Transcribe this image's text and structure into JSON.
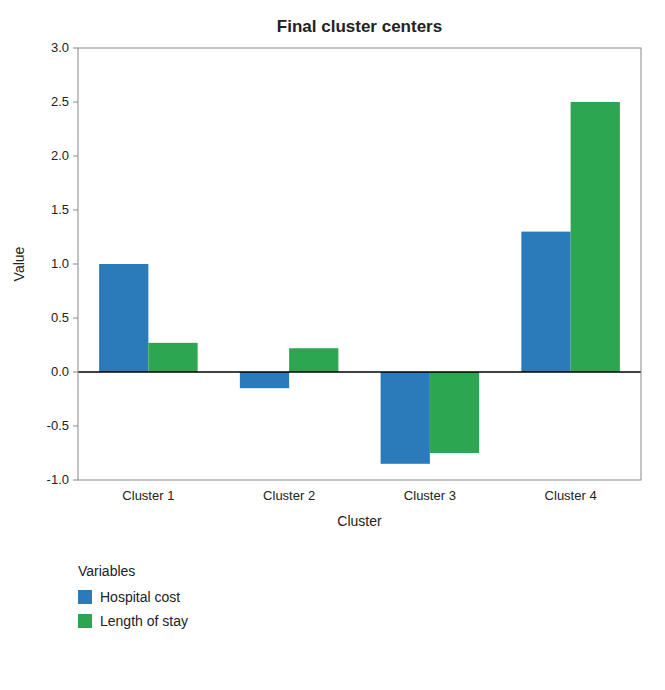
{
  "chart_data": {
    "type": "bar",
    "title": "Final cluster centers",
    "x_label": "Cluster",
    "y_label": "Value",
    "categories": [
      "Cluster 1",
      "Cluster 2",
      "Cluster 3",
      "Cluster 4"
    ],
    "series": [
      {
        "name": "Hospital cost",
        "color": "#2b7bba",
        "values": [
          1.0,
          -0.15,
          -0.85,
          1.3
        ]
      },
      {
        "name": "Length of stay",
        "color": "#2ca650",
        "values": [
          0.27,
          0.22,
          -0.75,
          2.5
        ]
      }
    ],
    "ylim": [
      -1.0,
      3.0
    ],
    "yticks": [
      {
        "value": -1,
        "label": "-1.0"
      },
      -0.5,
      {
        "value": 0,
        "label": "0.0"
      },
      0.5,
      {
        "value": 1,
        "label": "1.0"
      },
      1.5,
      {
        "value": 2,
        "label": "2.0"
      },
      2.5,
      {
        "value": 3,
        "label": "3.0"
      }
    ],
    "grid": false,
    "legend": "bottom",
    "legend_title": "Variables"
  }
}
